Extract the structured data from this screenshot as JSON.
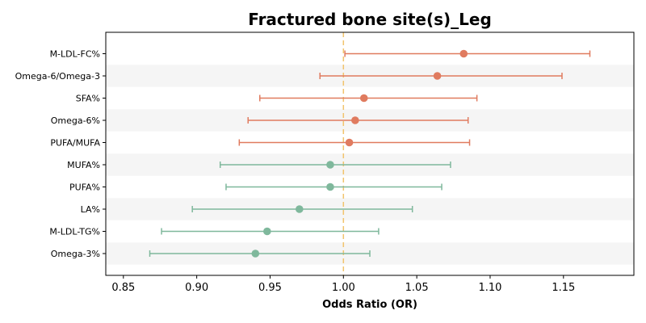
{
  "chart_data": {
    "type": "forest",
    "title": "Fractured bone site(s)_Leg",
    "xlabel": "Odds Ratio (OR)",
    "ylabel": "",
    "xlim": [
      0.838,
      1.198
    ],
    "xticks": [
      "0.85",
      "0.90",
      "0.95",
      "1.00",
      "1.05",
      "1.10",
      "1.15"
    ],
    "reference_line": 1.0,
    "grid": false,
    "row_banding": true,
    "colors": {
      "increased_risk": "#E07B5F",
      "decreased_risk": "#7FB89C",
      "reference": "#F2C46D",
      "band": "#F5F5F5"
    },
    "rows": [
      {
        "label": "M-LDL-FC%",
        "or": 1.082,
        "lower": 1.001,
        "upper": 1.168,
        "group": "increased_risk"
      },
      {
        "label": "Omega-6/Omega-3",
        "or": 1.064,
        "lower": 0.984,
        "upper": 1.149,
        "group": "increased_risk"
      },
      {
        "label": "SFA%",
        "or": 1.014,
        "lower": 0.943,
        "upper": 1.091,
        "group": "increased_risk"
      },
      {
        "label": "Omega-6%",
        "or": 1.008,
        "lower": 0.935,
        "upper": 1.085,
        "group": "increased_risk"
      },
      {
        "label": "PUFA/MUFA",
        "or": 1.004,
        "lower": 0.929,
        "upper": 1.086,
        "group": "increased_risk"
      },
      {
        "label": "MUFA%",
        "or": 0.991,
        "lower": 0.916,
        "upper": 1.073,
        "group": "decreased_risk"
      },
      {
        "label": "PUFA%",
        "or": 0.991,
        "lower": 0.92,
        "upper": 1.067,
        "group": "decreased_risk"
      },
      {
        "label": "LA%",
        "or": 0.97,
        "lower": 0.897,
        "upper": 1.047,
        "group": "decreased_risk"
      },
      {
        "label": "M-LDL-TG%",
        "or": 0.948,
        "lower": 0.876,
        "upper": 1.024,
        "group": "decreased_risk"
      },
      {
        "label": "Omega-3%",
        "or": 0.94,
        "lower": 0.868,
        "upper": 1.018,
        "group": "decreased_risk"
      }
    ]
  }
}
